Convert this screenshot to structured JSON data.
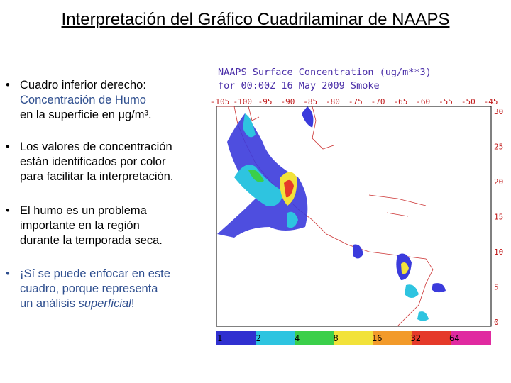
{
  "slide": {
    "title": "Interpretación del Gráfico Cuadrilaminar de NAAPS",
    "bullets": [
      {
        "lines": [
          "Cuadro inferior derecho:",
          "Concentración de Humo",
          "en la superficie en μg/m³."
        ]
      },
      {
        "lines": [
          "Los valores de concentración",
          "están identificados por color",
          "para facilitar la interpretación."
        ]
      },
      {
        "lines": [
          "El humo es un problema",
          "importante en la región",
          "durante la temporada seca."
        ]
      },
      {
        "lines": [
          "¡Sí se puede enfocar en este",
          "cuadro, porque representa",
          "un análisis ",
          "superficial",
          "!"
        ]
      }
    ]
  },
  "map": {
    "title": "NAAPS Surface Concentration (ug/m**3)",
    "subtitle": "for 00:00Z 16 May 2009  Smoke",
    "longitudes": [
      -105,
      -100,
      -95,
      -90,
      -85,
      -80,
      -75,
      -70,
      -65,
      -60,
      -55,
      -50,
      -45
    ],
    "latitudes": [
      30,
      25,
      20,
      15,
      10,
      5,
      0
    ],
    "colorbar": [
      1,
      2,
      4,
      8,
      16,
      32,
      64
    ]
  }
}
